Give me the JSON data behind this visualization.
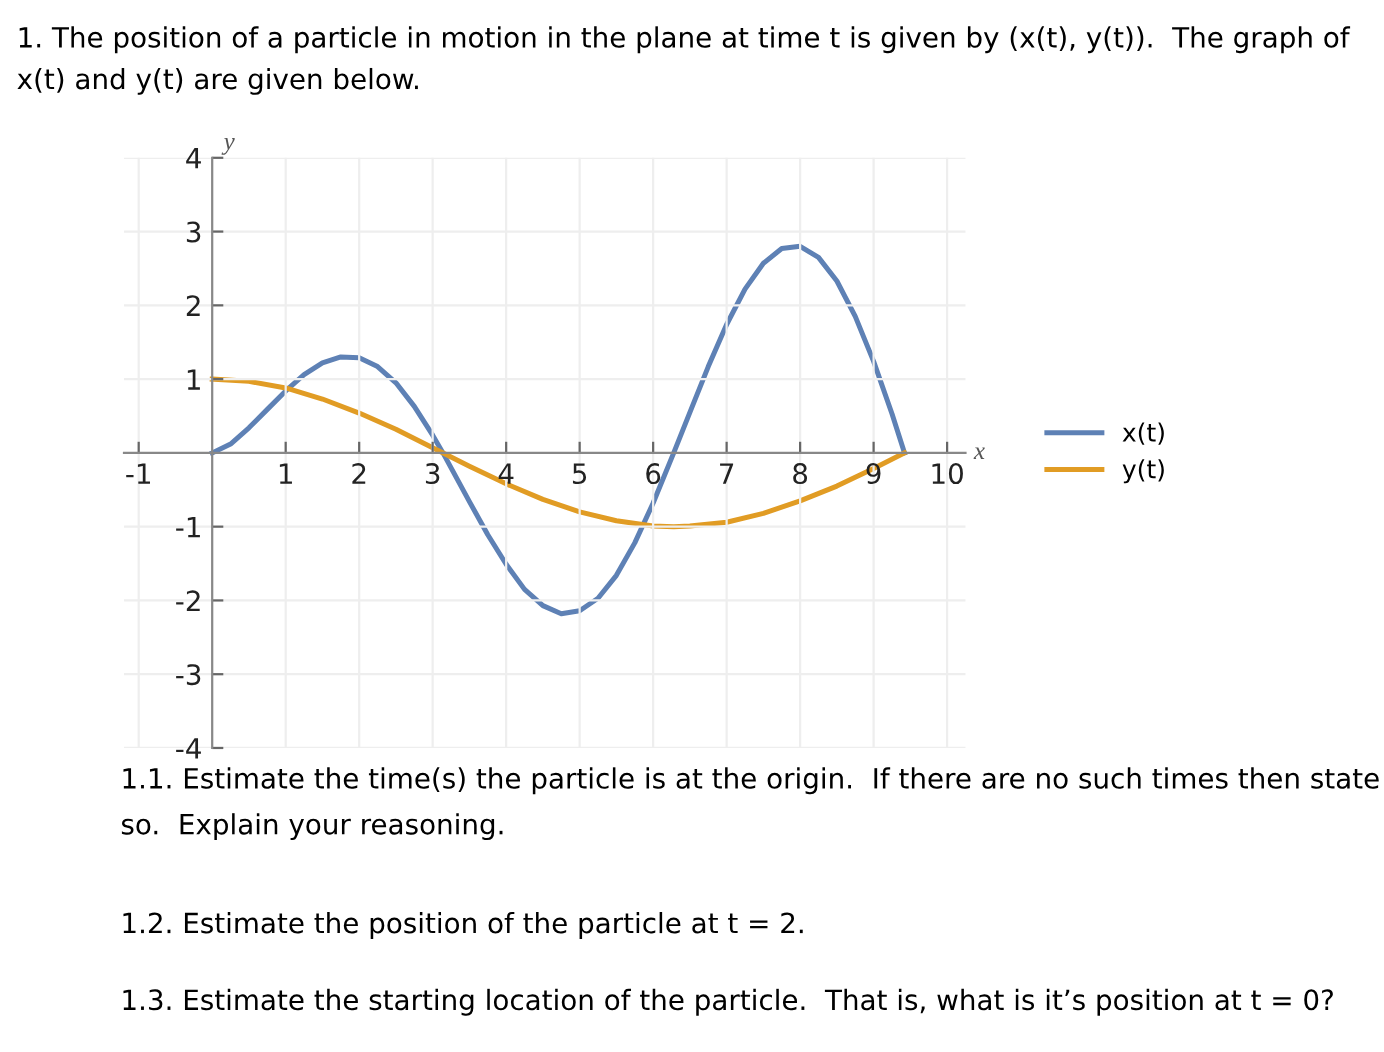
{
  "chart_data": {
    "type": "line",
    "title": "1. The position of a particle in motion in the plane at time t is given by (x(t), y(t)).  The graph of x(t) and y(t) are given below.",
    "xlabel": "x",
    "ylabel": "y",
    "series": [
      {
        "name": "x(t)",
        "color": "#5e81b5",
        "x": [
          0,
          0.25,
          0.5,
          0.75,
          1,
          1.25,
          1.5,
          1.75,
          2,
          2.25,
          2.5,
          2.75,
          3,
          3.14,
          3.5,
          3.75,
          4,
          4.25,
          4.5,
          4.75,
          5,
          5.25,
          5.5,
          5.75,
          6,
          6.28,
          6.5,
          6.75,
          7,
          7.25,
          7.5,
          7.75,
          8,
          8.25,
          8.5,
          8.75,
          9,
          9.25,
          9.42
        ],
        "values": [
          0,
          0.12,
          0.34,
          0.59,
          0.84,
          1.06,
          1.22,
          1.3,
          1.29,
          1.17,
          0.95,
          0.63,
          0.24,
          0,
          -0.66,
          -1.11,
          -1.51,
          -1.85,
          -2.07,
          -2.18,
          -2.14,
          -1.97,
          -1.66,
          -1.22,
          -0.68,
          0,
          0.55,
          1.17,
          1.74,
          2.22,
          2.57,
          2.77,
          2.8,
          2.65,
          2.33,
          1.85,
          1.24,
          0.53,
          0
        ]
      },
      {
        "name": "y(t)",
        "color": "#e19c24",
        "x": [
          0,
          0.5,
          1,
          1.5,
          2,
          2.5,
          3,
          3.5,
          4,
          4.5,
          5,
          5.5,
          6,
          6.28,
          6.5,
          7,
          7.5,
          8,
          8.5,
          9,
          9.42
        ],
        "values": [
          1,
          0.97,
          0.88,
          0.73,
          0.54,
          0.32,
          0.07,
          -0.18,
          -0.42,
          -0.63,
          -0.8,
          -0.92,
          -0.99,
          -1,
          -0.99,
          -0.94,
          -0.82,
          -0.65,
          -0.45,
          -0.21,
          0
        ]
      }
    ],
    "xlim": [
      -1.2,
      10.25
    ],
    "ylim": [
      -4,
      4
    ],
    "xticks": [
      -1,
      1,
      2,
      3,
      4,
      5,
      6,
      7,
      8,
      9,
      10
    ],
    "yticks": [
      -4,
      -3,
      -2,
      -1,
      1,
      2,
      3,
      4
    ],
    "grid": true,
    "legend": "right",
    "marker": "none",
    "line_style": "solid",
    "annotations": [
      "1.1. Estimate the time(s) the particle is at the origin.  If there are no such times then state so.  Explain your reasoning.",
      "1.2. Estimate the position of the particle at t = 2.",
      "1.3. Estimate the starting location of the particle.  That is, what is it’s position at t = 0?"
    ]
  }
}
